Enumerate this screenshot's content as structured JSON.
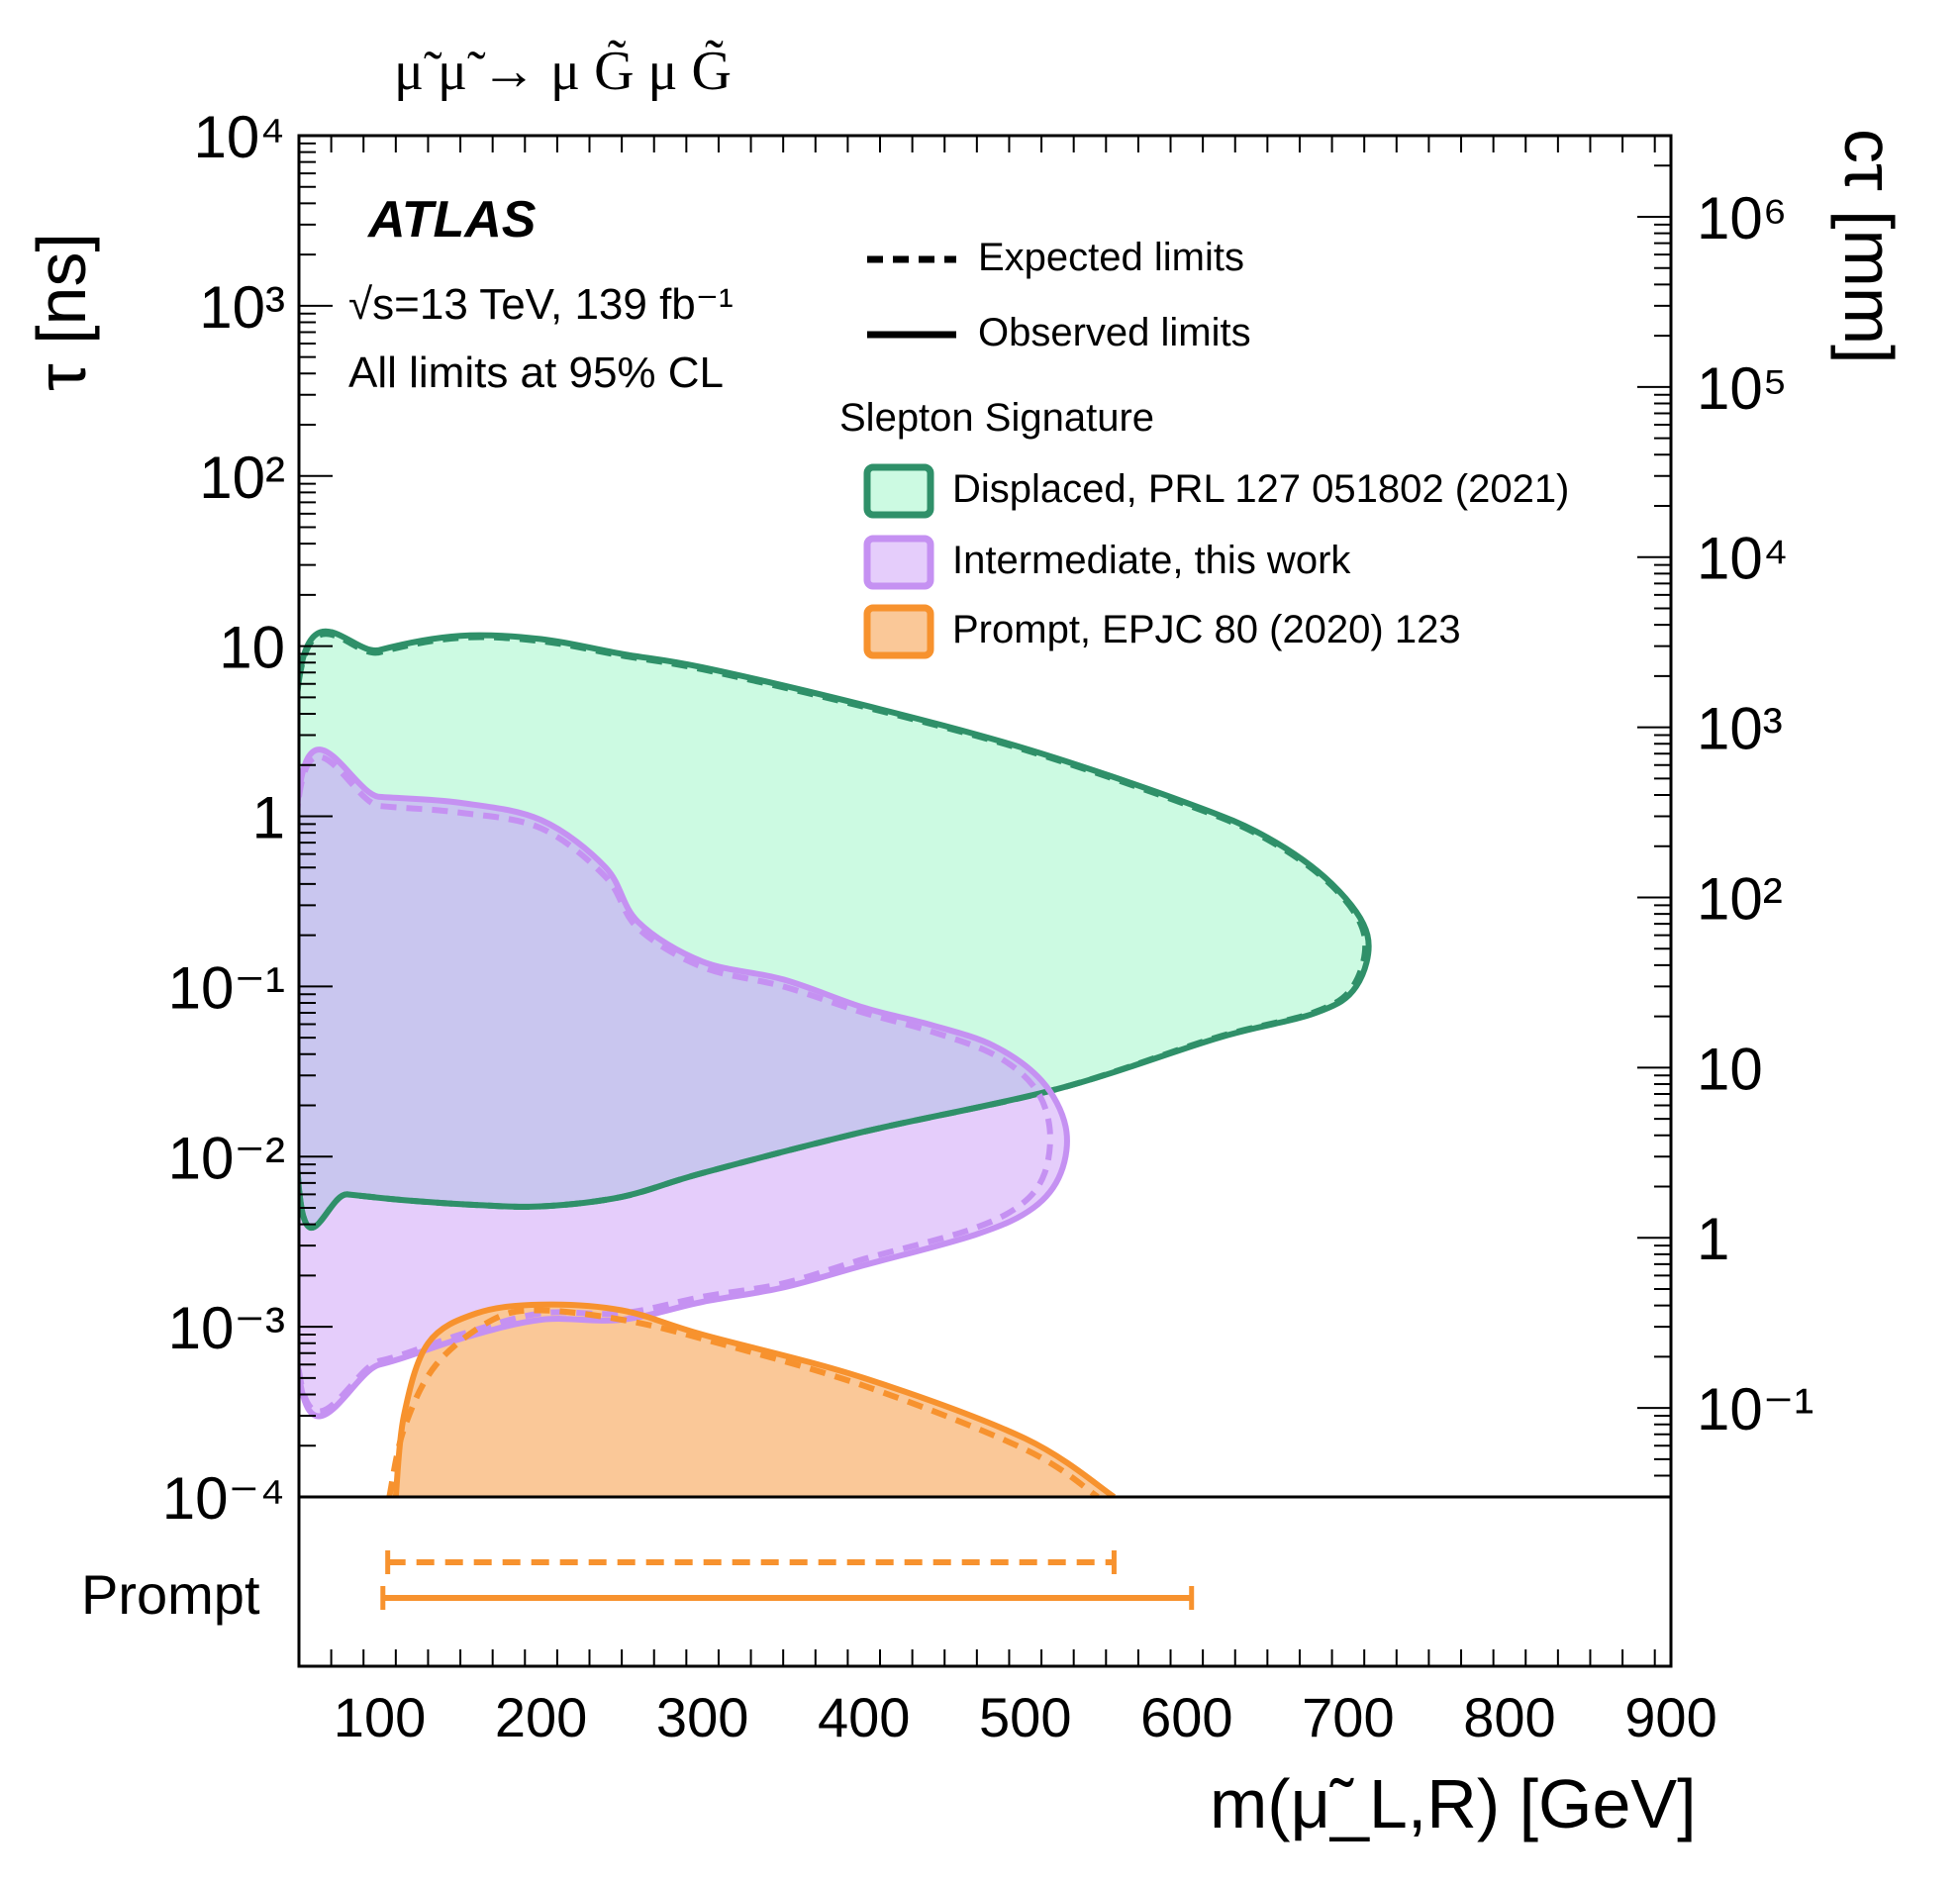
{
  "header": {
    "process": "μ̃ μ̃ → μ G̃ μ G̃"
  },
  "annotations": {
    "experiment": "ATLAS",
    "energy_lumi": "√s=13 TeV, 139 fb⁻¹",
    "cl_note": "All limits at 95% CL"
  },
  "colors": {
    "displaced_line": "#2f9069",
    "displaced_fill": "#ccfae2",
    "intermediate_line": "#c591f2",
    "intermediate_fill": "#e5cdfb",
    "prompt_line": "#f7922e",
    "prompt_fill": "#fac898",
    "overlap_fill": "#c9c6ef"
  },
  "legend": {
    "style_entries": [
      "Expected limits",
      "Observed limits"
    ],
    "header": "Slepton Signature",
    "signatures": [
      "Displaced, PRL 127 051802 (2021)",
      "Intermediate, this work",
      "Prompt, EPJC 80 (2020) 123"
    ]
  },
  "chart_data": {
    "type": "area",
    "xlabel": "m(μ̃_L,R) [GeV]",
    "ylabel": "τ [ns]",
    "y2label": "cτ [mm]",
    "xlim": [
      50,
      900
    ],
    "ylim": [
      0.0001,
      10000
    ],
    "yscale": "log",
    "x_ticks": [
      "100",
      "200",
      "300",
      "400",
      "500",
      "600",
      "700",
      "800",
      "900"
    ],
    "y_ticks": [
      "10⁻⁴",
      "10⁻³",
      "10⁻²",
      "10⁻¹",
      "1",
      "10",
      "10²",
      "10³",
      "10⁴"
    ],
    "y2_ticks": [
      "10⁻¹",
      "1",
      "10",
      "10²",
      "10³",
      "10⁴",
      "10⁵",
      "10⁶"
    ],
    "y2_tick_values_mm": [
      0.1,
      1,
      10,
      100,
      1000,
      10000,
      100000,
      1000000
    ],
    "grid": false,
    "legend_position": "top-right",
    "regions": [
      {
        "name": "Displaced, PRL 127 051802 (2021)",
        "observed": [
          [
            50,
            6.5
          ],
          [
            100,
            9.5
          ],
          [
            150,
            11.5
          ],
          [
            200,
            11
          ],
          [
            250,
            9
          ],
          [
            300,
            7.5
          ],
          [
            400,
            4.5
          ],
          [
            500,
            2.5
          ],
          [
            600,
            1.2
          ],
          [
            650,
            0.75
          ],
          [
            690,
            0.4
          ],
          [
            712,
            0.2
          ],
          [
            705,
            0.1
          ],
          [
            680,
            0.07
          ],
          [
            620,
            0.05
          ],
          [
            520,
            0.025
          ],
          [
            400,
            0.014
          ],
          [
            300,
            0.008
          ],
          [
            250,
            0.0058
          ],
          [
            200,
            0.0051
          ],
          [
            160,
            0.0052
          ],
          [
            120,
            0.0055
          ],
          [
            80,
            0.006
          ],
          [
            50,
            0.0065
          ]
        ],
        "expected": [
          [
            50,
            6.3
          ],
          [
            100,
            9.2
          ],
          [
            150,
            11.2
          ],
          [
            200,
            10.7
          ],
          [
            250,
            8.8
          ],
          [
            300,
            7.3
          ],
          [
            400,
            4.4
          ],
          [
            500,
            2.45
          ],
          [
            600,
            1.17
          ],
          [
            650,
            0.73
          ],
          [
            690,
            0.39
          ],
          [
            710,
            0.2
          ],
          [
            703,
            0.1
          ],
          [
            678,
            0.07
          ],
          [
            618,
            0.05
          ],
          [
            520,
            0.025
          ],
          [
            400,
            0.014
          ],
          [
            300,
            0.008
          ],
          [
            250,
            0.0058
          ],
          [
            200,
            0.0051
          ],
          [
            160,
            0.0052
          ],
          [
            120,
            0.0055
          ],
          [
            80,
            0.006
          ],
          [
            50,
            0.0065
          ]
        ]
      },
      {
        "name": "Intermediate, this work",
        "observed": [
          [
            50,
            1.4
          ],
          [
            100,
            1.3
          ],
          [
            150,
            1.2
          ],
          [
            200,
            0.95
          ],
          [
            240,
            0.5
          ],
          [
            260,
            0.24
          ],
          [
            300,
            0.14
          ],
          [
            350,
            0.11
          ],
          [
            400,
            0.075
          ],
          [
            440,
            0.06
          ],
          [
            480,
            0.045
          ],
          [
            510,
            0.028
          ],
          [
            525,
            0.015
          ],
          [
            522,
            0.008
          ],
          [
            505,
            0.005
          ],
          [
            470,
            0.0035
          ],
          [
            400,
            0.0023
          ],
          [
            350,
            0.0017
          ],
          [
            300,
            0.0014
          ],
          [
            250,
            0.0011
          ],
          [
            200,
            0.0011
          ],
          [
            150,
            0.00085
          ],
          [
            100,
            0.0006
          ],
          [
            50,
            0.00052
          ]
        ],
        "expected": [
          [
            50,
            1.3
          ],
          [
            100,
            1.15
          ],
          [
            150,
            1.05
          ],
          [
            200,
            0.85
          ],
          [
            240,
            0.44
          ],
          [
            260,
            0.22
          ],
          [
            300,
            0.13
          ],
          [
            350,
            0.1
          ],
          [
            400,
            0.07
          ],
          [
            440,
            0.055
          ],
          [
            480,
            0.04
          ],
          [
            505,
            0.026
          ],
          [
            515,
            0.015
          ],
          [
            512,
            0.008
          ],
          [
            497,
            0.0052
          ],
          [
            465,
            0.0037
          ],
          [
            400,
            0.0025
          ],
          [
            350,
            0.0018
          ],
          [
            300,
            0.0015
          ],
          [
            250,
            0.0012
          ],
          [
            200,
            0.0012
          ],
          [
            150,
            0.0009
          ],
          [
            100,
            0.00063
          ],
          [
            50,
            0.00055
          ]
        ]
      },
      {
        "name": "Prompt, EPJC 80 (2020) 123",
        "observed": [
          [
            110,
            0.0001
          ],
          [
            115,
            0.0003
          ],
          [
            130,
            0.0008
          ],
          [
            160,
            0.0012
          ],
          [
            200,
            0.00135
          ],
          [
            250,
            0.00125
          ],
          [
            300,
            0.0009
          ],
          [
            400,
            0.0005
          ],
          [
            500,
            0.00022
          ],
          [
            555,
            0.0001
          ]
        ],
        "expected": [
          [
            106,
            0.0001
          ],
          [
            115,
            0.00025
          ],
          [
            135,
            0.0006
          ],
          [
            170,
            0.0011
          ],
          [
            200,
            0.00125
          ],
          [
            250,
            0.0011
          ],
          [
            300,
            0.00085
          ],
          [
            400,
            0.00045
          ],
          [
            500,
            0.00019
          ],
          [
            545,
            0.0001
          ]
        ]
      }
    ],
    "prompt_limits": {
      "label": "Prompt",
      "expected": [
        105,
        555
      ],
      "observed": [
        102,
        603
      ]
    }
  }
}
